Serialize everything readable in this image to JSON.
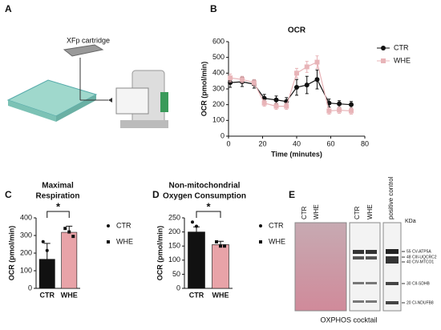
{
  "panel_labels": [
    "A",
    "B",
    "C",
    "D",
    "E"
  ],
  "illustration": {
    "label": "XFp cartridge"
  },
  "blot": {
    "lanes": [
      "CTR",
      "WHE",
      "CTR",
      "WHE",
      "positive control"
    ],
    "unit": "KDa",
    "markers": [
      "55 CV-ATP5A",
      "48 CIII-UQCRC2",
      "40 CIV-MTCO1",
      "30 CII-SDHB",
      "20 CI-NDUFB8"
    ],
    "caption": "OXPHOS cocktail"
  },
  "chart_data": [
    {
      "type": "line",
      "title": "OCR",
      "xlabel": "Time (minutes)",
      "ylabel": "OCR (pmol/min)",
      "x": [
        1,
        8,
        15,
        21,
        28,
        34,
        40,
        46,
        52,
        59,
        65,
        72
      ],
      "xlim": [
        0,
        80
      ],
      "xticks": [
        0,
        20,
        40,
        60,
        80
      ],
      "ylim": [
        0,
        600
      ],
      "yticks": [
        0,
        100,
        200,
        300,
        400,
        500,
        600
      ],
      "series": [
        {
          "name": "CTR",
          "color": "#111111",
          "marker": "circle",
          "values": [
            340,
            345,
            330,
            240,
            230,
            220,
            310,
            325,
            360,
            210,
            205,
            200
          ],
          "errors": [
            30,
            30,
            25,
            25,
            25,
            25,
            50,
            55,
            60,
            25,
            20,
            20
          ]
        },
        {
          "name": "WHE",
          "color": "#e8b4b8",
          "marker": "square",
          "values": [
            370,
            360,
            340,
            210,
            190,
            190,
            400,
            440,
            470,
            160,
            165,
            160
          ],
          "errors": [
            25,
            20,
            20,
            20,
            20,
            20,
            30,
            35,
            40,
            20,
            20,
            20
          ]
        }
      ]
    },
    {
      "type": "bar",
      "title": [
        "Maximal",
        "Respiration"
      ],
      "ylabel": "OCR (pmol/min)",
      "categories": [
        "CTR",
        "WHE"
      ],
      "values": [
        165,
        318
      ],
      "errors": [
        90,
        35
      ],
      "points": [
        [
          265,
          215,
          15
        ],
        [
          340,
          320,
          295
        ]
      ],
      "colors": [
        "#111111",
        "#e8a3a8"
      ],
      "markers": [
        "circle",
        "square"
      ],
      "ylim": [
        0,
        400
      ],
      "yticks": [
        0,
        100,
        200,
        300,
        400
      ],
      "annotation": "*"
    },
    {
      "type": "bar",
      "title": [
        "Non-mitochondrial",
        "Oxygen Consumption"
      ],
      "ylabel": "OCR (pmol/min)",
      "categories": [
        "CTR",
        "WHE"
      ],
      "values": [
        200,
        155
      ],
      "errors": [
        18,
        12
      ],
      "points": [
        [
          235,
          220,
          180
        ],
        [
          165,
          150,
          150
        ]
      ],
      "colors": [
        "#111111",
        "#e8a3a8"
      ],
      "markers": [
        "circle",
        "square"
      ],
      "ylim": [
        0,
        250
      ],
      "yticks": [
        0,
        50,
        100,
        150,
        200,
        250
      ],
      "annotation": "*"
    }
  ]
}
